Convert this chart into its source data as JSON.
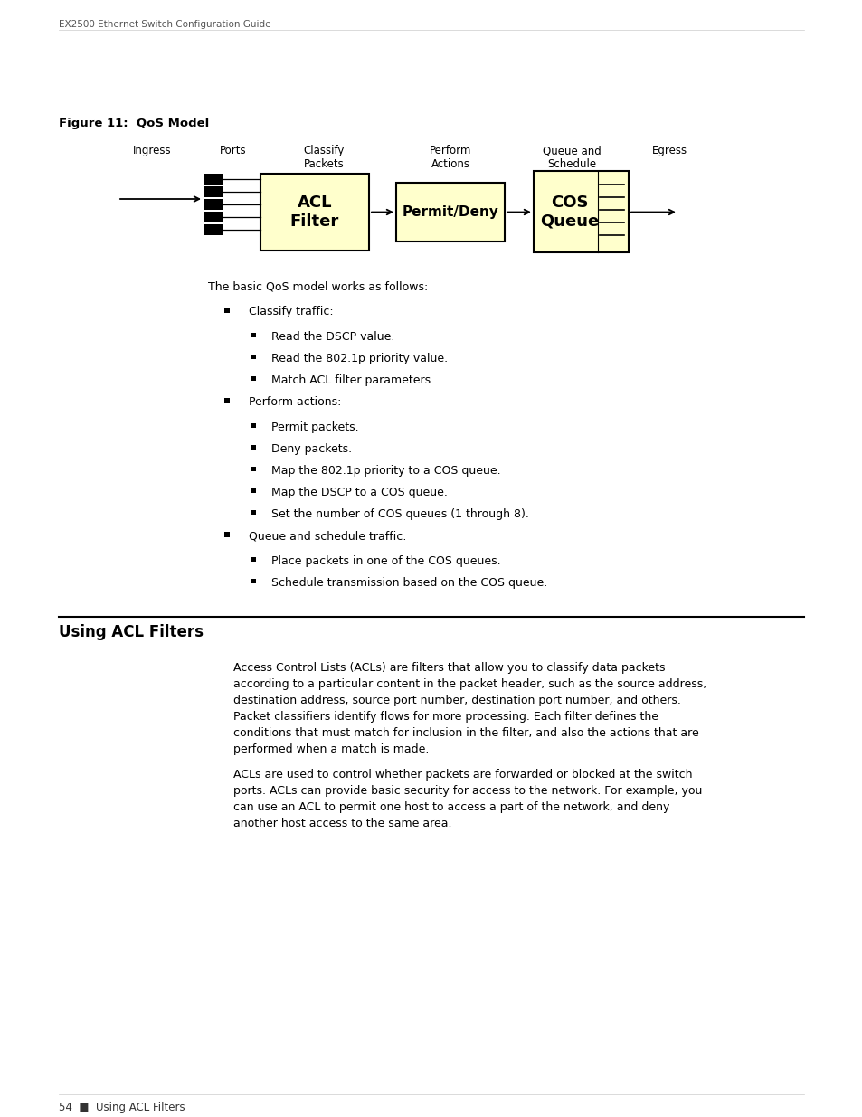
{
  "page_header": "EX2500 Ethernet Switch Configuration Guide",
  "figure_title": "Figure 11:  QoS Model",
  "diagram": {
    "acl_box": {
      "text": "ACL\nFilter",
      "color": "#ffffcc",
      "edgecolor": "#000000"
    },
    "permit_box": {
      "text": "Permit/Deny",
      "color": "#ffffcc",
      "edgecolor": "#000000"
    },
    "cos_box": {
      "text": "COS\nQueue",
      "color": "#ffffcc",
      "edgecolor": "#000000"
    }
  },
  "intro_text": "The basic QoS model works as follows:",
  "bullet_items": [
    {
      "level": 1,
      "text": "Classify traffic:"
    },
    {
      "level": 2,
      "text": "Read the DSCP value."
    },
    {
      "level": 2,
      "text": "Read the 802.1p priority value."
    },
    {
      "level": 2,
      "text": "Match ACL filter parameters."
    },
    {
      "level": 1,
      "text": "Perform actions:"
    },
    {
      "level": 2,
      "text": "Permit packets."
    },
    {
      "level": 2,
      "text": "Deny packets."
    },
    {
      "level": 2,
      "text": "Map the 802.1p priority to a COS queue."
    },
    {
      "level": 2,
      "text": "Map the DSCP to a COS queue."
    },
    {
      "level": 2,
      "text": "Set the number of COS queues (1 through 8)."
    },
    {
      "level": 1,
      "text": "Queue and schedule traffic:"
    },
    {
      "level": 2,
      "text": "Place packets in one of the COS queues."
    },
    {
      "level": 2,
      "text": "Schedule transmission based on the COS queue."
    }
  ],
  "section_title": "Using ACL Filters",
  "section_body": [
    "Access Control Lists (ACLs) are filters that allow you to classify data packets\naccording to a particular content in the packet header, such as the source address,\ndestination address, source port number, destination port number, and others.\nPacket classifiers identify flows for more processing. Each filter defines the\nconditions that must match for inclusion in the filter, and also the actions that are\nperformed when a match is made.",
    "ACLs are used to control whether packets are forwarded or blocked at the switch\nports. ACLs can provide basic security for access to the network. For example, you\ncan use an ACL to permit one host to access a part of the network, and deny\nanother host access to the same area."
  ],
  "footer_text": "54  ■  Using ACL Filters",
  "bg_color": "#ffffff",
  "text_color": "#000000"
}
